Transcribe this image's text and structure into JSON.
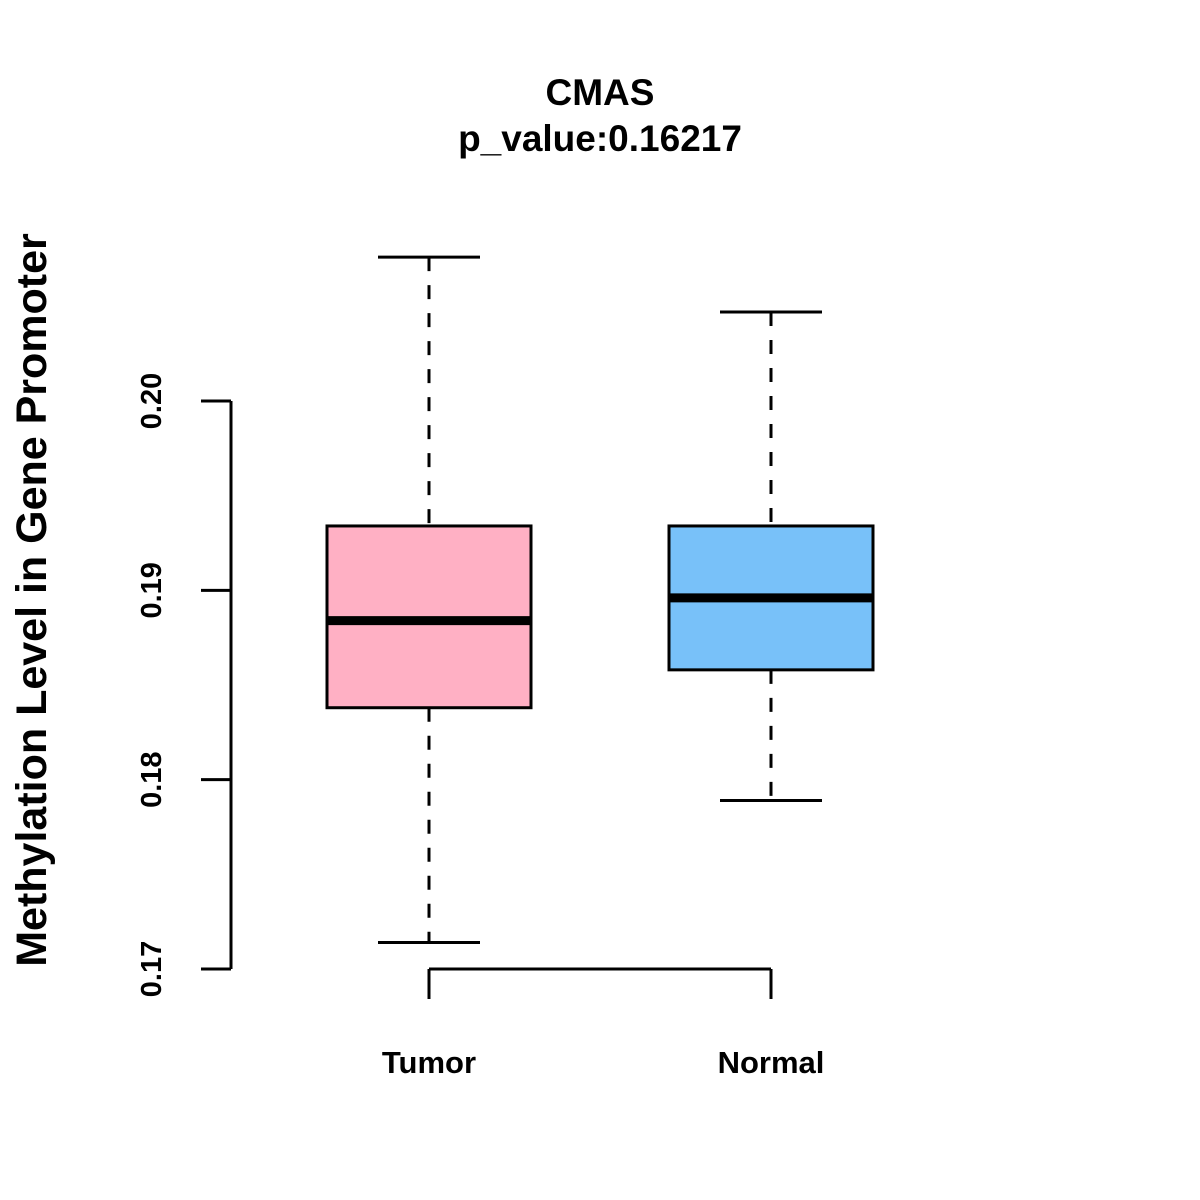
{
  "chart_data": {
    "type": "boxplot",
    "title": "CMAS",
    "subtitle": "p_value:0.16217",
    "xlabel": "",
    "ylabel": "Methylation Level in Gene Promoter",
    "ylim": [
      0.17,
      0.2
    ],
    "yticks": [
      0.17,
      0.18,
      0.19,
      0.2
    ],
    "ytick_labels": [
      "0.17",
      "0.18",
      "0.19",
      "0.20"
    ],
    "categories": [
      "Tumor",
      "Normal"
    ],
    "series": [
      {
        "name": "Tumor",
        "whisker_low": 0.1714,
        "q1": 0.1838,
        "median": 0.1884,
        "q3": 0.1934,
        "whisker_high": 0.2076,
        "color": "#FFB0C4"
      },
      {
        "name": "Normal",
        "whisker_low": 0.1789,
        "q1": 0.1858,
        "median": 0.1896,
        "q3": 0.1934,
        "whisker_high": 0.2047,
        "color": "#78C1F9"
      }
    ],
    "grid": false
  }
}
